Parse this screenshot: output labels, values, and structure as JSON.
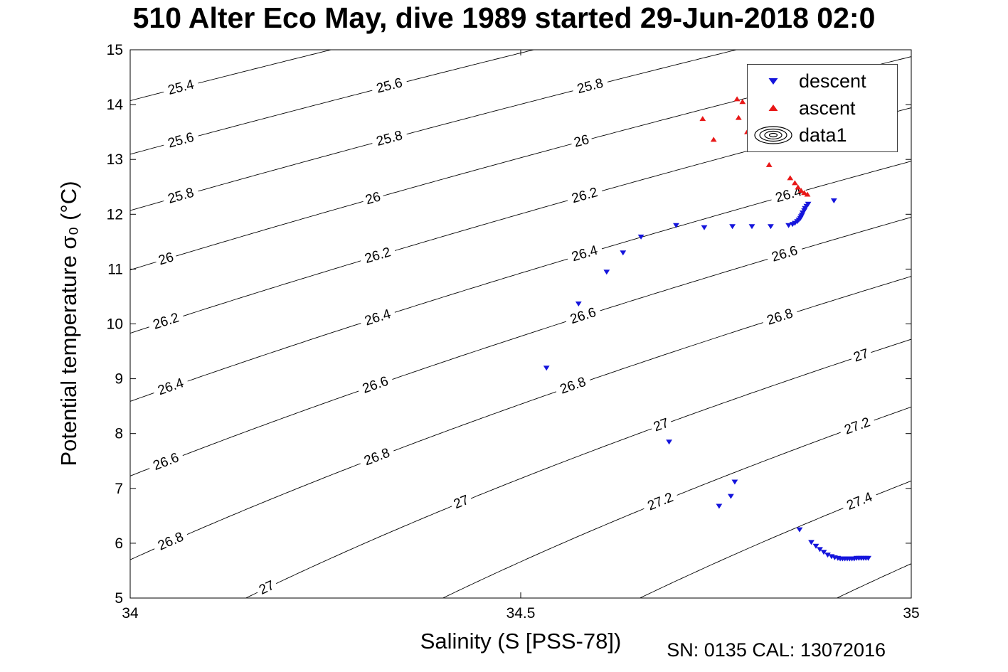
{
  "chart_data": {
    "type": "scatter",
    "title": "510 Alter Eco May, dive 1989 started 29-Jun-2018 02:0",
    "xlabel": "Salinity (S [PSS-78])",
    "ylabel": "Potential temperature σ₀ (°C)",
    "annotation": "SN: 0135  CAL: 13072016",
    "xlim": [
      34,
      35
    ],
    "ylim": [
      5,
      15
    ],
    "xtick_values": [
      34,
      34.5,
      35
    ],
    "xtick_labels": [
      "34",
      "34.5",
      "35"
    ],
    "ytick_values": [
      5,
      6,
      7,
      8,
      9,
      10,
      11,
      12,
      13,
      14,
      15
    ],
    "ytick_labels": [
      "5",
      "6",
      "7",
      "8",
      "9",
      "10",
      "11",
      "12",
      "13",
      "14",
      "15"
    ],
    "grid": false,
    "legend_position": "top-right-inside",
    "legend": [
      {
        "label": "descent",
        "marker": "triangle-down",
        "color": "#1414dc"
      },
      {
        "label": "ascent",
        "marker": "triangle-up",
        "color": "#e81717"
      },
      {
        "label": "data1",
        "marker": "contour-rings",
        "color": "#000000"
      }
    ],
    "series": [
      {
        "name": "descent",
        "marker": "triangle-down",
        "color": "#1414dc",
        "points": [
          [
            34.901,
            12.25
          ],
          [
            34.868,
            12.19
          ],
          [
            34.866,
            12.15
          ],
          [
            34.864,
            12.11
          ],
          [
            34.863,
            12.07
          ],
          [
            34.861,
            12.03
          ],
          [
            34.86,
            11.99
          ],
          [
            34.859,
            11.96
          ],
          [
            34.858,
            11.93
          ],
          [
            34.856,
            11.9
          ],
          [
            34.854,
            11.87
          ],
          [
            34.851,
            11.84
          ],
          [
            34.848,
            11.82
          ],
          [
            34.843,
            11.8
          ],
          [
            34.82,
            11.78
          ],
          [
            34.796,
            11.78
          ],
          [
            34.771,
            11.78
          ],
          [
            34.735,
            11.76
          ],
          [
            34.699,
            11.8
          ],
          [
            34.654,
            11.59
          ],
          [
            34.631,
            11.3
          ],
          [
            34.61,
            10.95
          ],
          [
            34.574,
            10.37
          ],
          [
            34.533,
            9.2
          ],
          [
            34.69,
            7.85
          ],
          [
            34.774,
            7.12
          ],
          [
            34.769,
            6.86
          ],
          [
            34.754,
            6.68
          ],
          [
            34.857,
            6.25
          ],
          [
            34.872,
            6.02
          ],
          [
            34.878,
            5.95
          ],
          [
            34.883,
            5.89
          ],
          [
            34.888,
            5.84
          ],
          [
            34.893,
            5.79
          ],
          [
            34.898,
            5.76
          ],
          [
            34.902,
            5.74
          ],
          [
            34.906,
            5.73
          ],
          [
            34.909,
            5.72
          ],
          [
            34.912,
            5.72
          ],
          [
            34.915,
            5.72
          ],
          [
            34.918,
            5.72
          ],
          [
            34.921,
            5.72
          ],
          [
            34.924,
            5.72
          ],
          [
            34.927,
            5.72
          ],
          [
            34.93,
            5.73
          ],
          [
            34.933,
            5.73
          ],
          [
            34.936,
            5.73
          ],
          [
            34.939,
            5.73
          ],
          [
            34.942,
            5.73
          ],
          [
            34.945,
            5.73
          ]
        ]
      },
      {
        "name": "ascent",
        "marker": "triangle-up",
        "color": "#e81717",
        "points": [
          [
            34.777,
            14.1
          ],
          [
            34.784,
            14.05
          ],
          [
            34.733,
            13.74
          ],
          [
            34.779,
            13.76
          ],
          [
            34.79,
            13.5
          ],
          [
            34.747,
            13.36
          ],
          [
            34.818,
            12.9
          ],
          [
            34.845,
            12.66
          ],
          [
            34.851,
            12.57
          ],
          [
            34.855,
            12.49
          ],
          [
            34.859,
            12.43
          ],
          [
            34.863,
            12.39
          ],
          [
            34.867,
            12.36
          ]
        ]
      }
    ],
    "contours": {
      "name": "data1",
      "quantity": "potential density sigma0",
      "color": "#000000",
      "levels": [
        {
          "value": 25.4,
          "label": "25.4",
          "label_s": [
            34.065
          ]
        },
        {
          "value": 25.6,
          "label": "25.6",
          "label_s": [
            34.065,
            34.332
          ]
        },
        {
          "value": 25.8,
          "label": "25.8",
          "label_s": [
            34.065,
            34.332,
            34.589
          ]
        },
        {
          "value": 26.0,
          "label": "26",
          "label_s": [
            34.046,
            34.311,
            34.578
          ]
        },
        {
          "value": 26.2,
          "label": "26.2",
          "label_s": [
            34.046,
            34.317,
            34.582
          ]
        },
        {
          "value": 26.4,
          "label": "26.4",
          "label_s": [
            34.052,
            34.317,
            34.582,
            34.843
          ]
        },
        {
          "value": 26.6,
          "label": "26.6",
          "label_s": [
            34.046,
            34.314,
            34.58,
            34.838
          ]
        },
        {
          "value": 26.8,
          "label": "26.8",
          "label_s": [
            34.052,
            34.316,
            34.567,
            34.832
          ]
        },
        {
          "value": 27.0,
          "label": "27",
          "label_s": [
            34.175,
            34.424,
            34.68,
            34.936
          ]
        },
        {
          "value": 27.2,
          "label": "27.2",
          "label_s": [
            34.679,
            34.931
          ]
        },
        {
          "value": 27.4,
          "label": "27.4",
          "label_s": [
            34.934
          ]
        },
        {
          "value": 27.6,
          "label": "27.6",
          "label_s": []
        }
      ]
    }
  }
}
